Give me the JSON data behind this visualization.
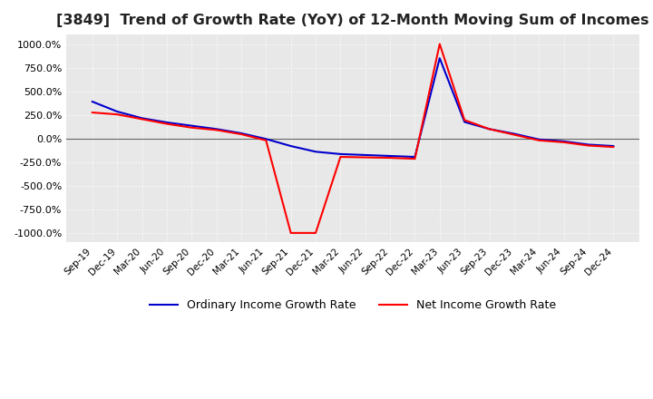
{
  "title": "[3849]  Trend of Growth Rate (YoY) of 12-Month Moving Sum of Incomes",
  "title_fontsize": 11.5,
  "ylim": [
    -1100,
    1100
  ],
  "yticks": [
    -1000,
    -750,
    -500,
    -250,
    0,
    250,
    500,
    750,
    1000
  ],
  "ytick_labels": [
    "-1000.0%",
    "-750.0%",
    "-500.0%",
    "-250.0%",
    "0.0%",
    "250.0%",
    "500.0%",
    "750.0%",
    "1000.0%"
  ],
  "background_color": "#ffffff",
  "plot_bg_color": "#e8e8e8",
  "grid_color": "#ffffff",
  "ordinary_color": "#0000cc",
  "net_color": "#ff0000",
  "legend_ordinary": "Ordinary Income Growth Rate",
  "legend_net": "Net Income Growth Rate",
  "x_labels": [
    "Sep-19",
    "Dec-19",
    "Mar-20",
    "Jun-20",
    "Sep-20",
    "Dec-20",
    "Mar-21",
    "Jun-21",
    "Sep-21",
    "Dec-21",
    "Mar-22",
    "Jun-22",
    "Sep-22",
    "Dec-22",
    "Mar-23",
    "Jun-23",
    "Sep-23",
    "Dec-23",
    "Mar-24",
    "Jun-24",
    "Sep-24",
    "Dec-24"
  ],
  "ordinary_values": [
    390,
    285,
    215,
    170,
    135,
    100,
    55,
    -5,
    -80,
    -140,
    -165,
    -175,
    -185,
    -195,
    850,
    175,
    100,
    50,
    -10,
    -30,
    -65,
    -80
  ],
  "net_values": [
    275,
    255,
    205,
    155,
    115,
    90,
    45,
    -20,
    -1000,
    -1000,
    -195,
    -200,
    -205,
    -215,
    1000,
    195,
    100,
    40,
    -20,
    -40,
    -75,
    -90
  ]
}
